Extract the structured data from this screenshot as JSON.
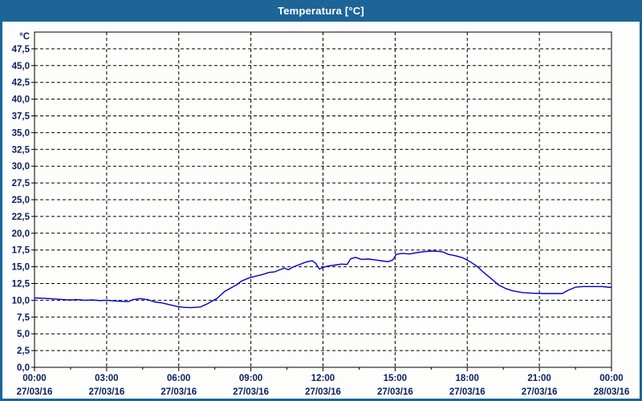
{
  "window": {
    "title": "Temperatura [°C]"
  },
  "colors": {
    "titlebar": "#1d6497",
    "border": "#1d6497",
    "background": "#fdfdfc",
    "label": "#0b2161",
    "grid": "#000000",
    "line": "#0000cc"
  },
  "chart_data": {
    "type": "line",
    "title": "Temperatura [°C]",
    "y_unit_label": "°C",
    "ylim": [
      0,
      50
    ],
    "xlim_hours": [
      0,
      24
    ],
    "minor_tick_hours": 1.5,
    "grid": "dashed",
    "legend": "none",
    "yticks": [
      {
        "value": 0,
        "label": "0,0"
      },
      {
        "value": 2.5,
        "label": "2,5"
      },
      {
        "value": 5,
        "label": "5,0"
      },
      {
        "value": 7.5,
        "label": "7,5"
      },
      {
        "value": 10,
        "label": "10,0"
      },
      {
        "value": 12.5,
        "label": "12,5"
      },
      {
        "value": 15,
        "label": "15,0"
      },
      {
        "value": 17.5,
        "label": "17,5"
      },
      {
        "value": 20,
        "label": "20,0"
      },
      {
        "value": 22.5,
        "label": "22,5"
      },
      {
        "value": 25,
        "label": "25,0"
      },
      {
        "value": 27.5,
        "label": "27,5"
      },
      {
        "value": 30,
        "label": "30,0"
      },
      {
        "value": 32.5,
        "label": "32,5"
      },
      {
        "value": 35,
        "label": "35,0"
      },
      {
        "value": 37.5,
        "label": "37,5"
      },
      {
        "value": 40,
        "label": "40,0"
      },
      {
        "value": 42.5,
        "label": "42,5"
      },
      {
        "value": 45,
        "label": "45,0"
      },
      {
        "value": 47.5,
        "label": "47,5"
      }
    ],
    "xticks": [
      {
        "hour": 0,
        "time": "00:00",
        "date": "27/03/16"
      },
      {
        "hour": 3,
        "time": "03:00",
        "date": "27/03/16"
      },
      {
        "hour": 6,
        "time": "06:00",
        "date": "27/03/16"
      },
      {
        "hour": 9,
        "time": "09:00",
        "date": "27/03/16"
      },
      {
        "hour": 12,
        "time": "12:00",
        "date": "27/03/16"
      },
      {
        "hour": 15,
        "time": "15:00",
        "date": "27/03/16"
      },
      {
        "hour": 18,
        "time": "18:00",
        "date": "27/03/16"
      },
      {
        "hour": 21,
        "time": "21:00",
        "date": "27/03/16"
      },
      {
        "hour": 24,
        "time": "00:00",
        "date": "28/03/16"
      }
    ],
    "series": [
      {
        "name": "Temperatura",
        "color": "#0000cc",
        "points": [
          [
            0.0,
            10.35
          ],
          [
            0.4,
            10.3
          ],
          [
            0.8,
            10.2
          ],
          [
            1.2,
            10.1
          ],
          [
            1.5,
            10.05
          ],
          [
            1.8,
            10.1
          ],
          [
            2.1,
            10.0
          ],
          [
            2.4,
            10.05
          ],
          [
            2.7,
            9.95
          ],
          [
            3.0,
            10.0
          ],
          [
            3.3,
            9.9
          ],
          [
            3.6,
            9.85
          ],
          [
            3.9,
            9.8
          ],
          [
            4.1,
            10.1
          ],
          [
            4.4,
            10.25
          ],
          [
            4.7,
            10.1
          ],
          [
            5.0,
            9.75
          ],
          [
            5.3,
            9.6
          ],
          [
            5.6,
            9.35
          ],
          [
            5.9,
            9.1
          ],
          [
            6.2,
            8.95
          ],
          [
            6.5,
            8.9
          ],
          [
            6.9,
            9.0
          ],
          [
            7.2,
            9.5
          ],
          [
            7.6,
            10.3
          ],
          [
            7.9,
            11.3
          ],
          [
            8.2,
            11.9
          ],
          [
            8.45,
            12.4
          ],
          [
            8.6,
            12.85
          ],
          [
            8.9,
            13.3
          ],
          [
            9.2,
            13.6
          ],
          [
            9.5,
            13.85
          ],
          [
            9.75,
            14.15
          ],
          [
            10.0,
            14.25
          ],
          [
            10.2,
            14.55
          ],
          [
            10.4,
            14.8
          ],
          [
            10.55,
            14.55
          ],
          [
            10.75,
            14.95
          ],
          [
            11.0,
            15.3
          ],
          [
            11.3,
            15.7
          ],
          [
            11.55,
            15.9
          ],
          [
            11.7,
            15.5
          ],
          [
            11.85,
            14.65
          ],
          [
            12.0,
            14.9
          ],
          [
            12.2,
            15.1
          ],
          [
            12.5,
            15.25
          ],
          [
            12.75,
            15.4
          ],
          [
            13.0,
            15.35
          ],
          [
            13.15,
            16.2
          ],
          [
            13.35,
            16.4
          ],
          [
            13.6,
            16.1
          ],
          [
            13.9,
            16.15
          ],
          [
            14.2,
            16.0
          ],
          [
            14.5,
            15.85
          ],
          [
            14.7,
            15.75
          ],
          [
            14.9,
            16.0
          ],
          [
            15.05,
            16.85
          ],
          [
            15.3,
            17.0
          ],
          [
            15.6,
            16.9
          ],
          [
            15.9,
            17.1
          ],
          [
            16.2,
            17.25
          ],
          [
            16.5,
            17.35
          ],
          [
            16.8,
            17.3
          ],
          [
            17.0,
            17.2
          ],
          [
            17.2,
            16.85
          ],
          [
            17.5,
            16.65
          ],
          [
            17.8,
            16.35
          ],
          [
            18.1,
            15.8
          ],
          [
            18.4,
            15.1
          ],
          [
            18.7,
            14.1
          ],
          [
            19.0,
            13.2
          ],
          [
            19.3,
            12.3
          ],
          [
            19.6,
            11.75
          ],
          [
            19.9,
            11.4
          ],
          [
            20.3,
            11.15
          ],
          [
            20.7,
            11.05
          ],
          [
            21.2,
            11.0
          ],
          [
            21.6,
            11.0
          ],
          [
            21.95,
            11.0
          ],
          [
            22.2,
            11.5
          ],
          [
            22.5,
            11.95
          ],
          [
            22.8,
            12.05
          ],
          [
            23.2,
            12.05
          ],
          [
            23.6,
            12.05
          ],
          [
            24.0,
            11.9
          ]
        ]
      }
    ]
  }
}
